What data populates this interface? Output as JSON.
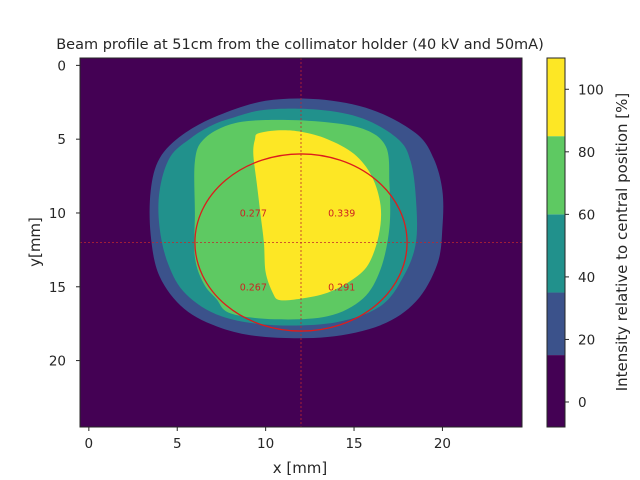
{
  "colors": {
    "band_below_15": "#440154",
    "band_15_35": "#3b528b",
    "band_35_60": "#21918c",
    "band_60_85": "#5ec962",
    "band_above_85": "#fde725",
    "circle": "#dd1c1c",
    "crosshair": "#c0272d",
    "annotation": "#cc2222"
  },
  "chart_data": {
    "type": "heatmap",
    "title": "Beam profile at 51cm from the collimator holder (40 kV and 50mA)",
    "xlabel": "x [mm]",
    "ylabel": "y[mm]",
    "xlim": [
      -0.5,
      24.5
    ],
    "ylim": [
      24.5,
      -0.5
    ],
    "x_ticks": [
      0,
      5,
      10,
      15,
      20
    ],
    "y_ticks": [
      0,
      5,
      10,
      15,
      20
    ],
    "grid": false,
    "colorbar": {
      "label": "Intensity relative to central position [%]",
      "range": [
        -8,
        110
      ],
      "ticks": [
        0,
        20,
        40,
        60,
        80,
        100
      ],
      "levels": [
        -8,
        15,
        35,
        60,
        85,
        110
      ]
    },
    "contour_levels_percent": [
      15,
      35,
      60,
      85
    ],
    "contour_regions": [
      {
        "level": ">=15",
        "outline_mm": [
          [
            10,
            2.4
          ],
          [
            13,
            2.3
          ],
          [
            16,
            3
          ],
          [
            18.5,
            4.6
          ],
          [
            19.5,
            6.3
          ],
          [
            20,
            8.5
          ],
          [
            20,
            11
          ],
          [
            19.7,
            13.5
          ],
          [
            18.5,
            16
          ],
          [
            16.5,
            17.6
          ],
          [
            13.5,
            18.4
          ],
          [
            10,
            18.4
          ],
          [
            7.5,
            17.8
          ],
          [
            5.4,
            16.5
          ],
          [
            4,
            14.3
          ],
          [
            3.5,
            11.5
          ],
          [
            3.5,
            8.5
          ],
          [
            4,
            6.3
          ],
          [
            5.3,
            4.7
          ],
          [
            7.3,
            3.4
          ]
        ]
      },
      {
        "level": ">=35",
        "outline_mm": [
          [
            8,
            3.6
          ],
          [
            10,
            3
          ],
          [
            13,
            3
          ],
          [
            15.5,
            3.6
          ],
          [
            17.5,
            5
          ],
          [
            18.2,
            6.5
          ],
          [
            18.5,
            9
          ],
          [
            18.5,
            12
          ],
          [
            17.8,
            14.3
          ],
          [
            16.5,
            16.3
          ],
          [
            14,
            17.4
          ],
          [
            10.5,
            17.6
          ],
          [
            7.5,
            17
          ],
          [
            5.5,
            15.5
          ],
          [
            4.5,
            13.5
          ],
          [
            4,
            11
          ],
          [
            4,
            8.5
          ],
          [
            4.6,
            6.2
          ],
          [
            5.8,
            4.9
          ],
          [
            6.9,
            4.1
          ]
        ]
      },
      {
        "level": ">=60",
        "outline_mm": [
          [
            8,
            4
          ],
          [
            10,
            3.7
          ],
          [
            13,
            3.8
          ],
          [
            15.5,
            4.3
          ],
          [
            16.8,
            5.5
          ],
          [
            17,
            8
          ],
          [
            17,
            11
          ],
          [
            16.5,
            13.8
          ],
          [
            15.5,
            15.8
          ],
          [
            13.5,
            17
          ],
          [
            10.5,
            17.2
          ],
          [
            8,
            16.8
          ],
          [
            7.2,
            15.8
          ],
          [
            6.5,
            14.8
          ],
          [
            6,
            13
          ],
          [
            6,
            10
          ],
          [
            6,
            6.5
          ],
          [
            6.5,
            5
          ]
        ]
      },
      {
        "level": ">=85",
        "outline_mm": [
          [
            9.6,
            4.6
          ],
          [
            10.8,
            4.4
          ],
          [
            12,
            4.5
          ],
          [
            13.5,
            5
          ],
          [
            15,
            6
          ],
          [
            16,
            7.5
          ],
          [
            16.5,
            9.5
          ],
          [
            16.4,
            11.5
          ],
          [
            15.8,
            13.5
          ],
          [
            14.8,
            14.6
          ],
          [
            13.5,
            15.4
          ],
          [
            12,
            15.8
          ],
          [
            10.8,
            15.9
          ],
          [
            10.4,
            15.4
          ],
          [
            10,
            14
          ],
          [
            9.9,
            12
          ],
          [
            9.7,
            10
          ],
          [
            9.5,
            8
          ],
          [
            9.3,
            6
          ],
          [
            9.4,
            5
          ]
        ]
      }
    ],
    "circle": {
      "center_x": 12,
      "center_y": 12,
      "radius": 6
    },
    "crosshair": {
      "x": 12,
      "y": 12
    },
    "annotations": [
      {
        "x": 9.3,
        "y": 10,
        "text": "0.277"
      },
      {
        "x": 14.3,
        "y": 10,
        "text": "0.339"
      },
      {
        "x": 9.3,
        "y": 15,
        "text": "0.267"
      },
      {
        "x": 14.3,
        "y": 15,
        "text": "0.291"
      }
    ]
  }
}
